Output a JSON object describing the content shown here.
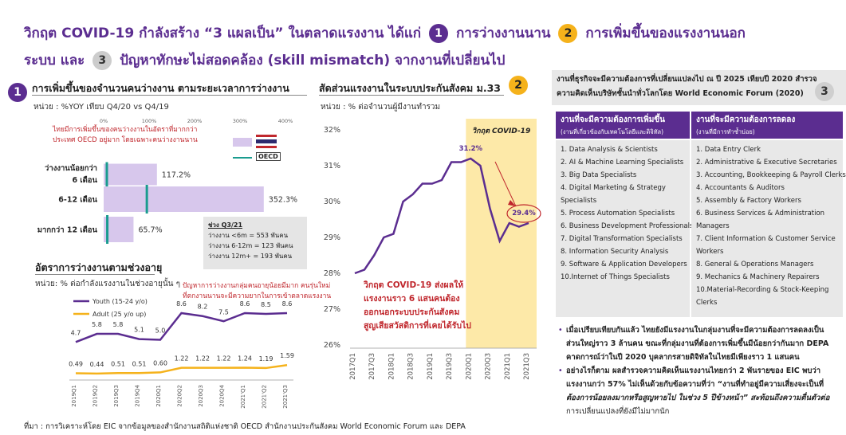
{
  "title": {
    "line1_pre": "วิกฤต COVID-19 กำลังสร้าง “3 แผลเป็น” ในตลาดแรงงาน ได้แก่",
    "n1": "1",
    "item1": "การว่างงานนาน",
    "n2": "2",
    "item2": "การเพิ่มขึ้นของแรงงานนอก",
    "line2_pre": "ระบบ และ",
    "n3": "3",
    "item3": "ปัญหาทักษะไม่สอดคล้อง (skill mismatch) จากงานที่เปลี่ยนไป"
  },
  "panel1": {
    "badge": "1",
    "title": "การเพิ่มขึ้นของจำนวนคนว่างงาน ตามระยะเวลาการว่างงาน",
    "unit": "หน่วย : %YOY เทียบ Q4/20 vs Q4/19",
    "note_line1": "ไทยมีการเพิ่มขึ้นของคนว่างงานในอัตราที่มากกว่า",
    "note_line2": "ประเทศ OECD อยู่มาก โดยเฉพาะคนว่างงานนาน",
    "legend_oecd": "OECD",
    "box_title": "ช่วง Q3/21",
    "box_lines": [
      "ว่างงาน <6m = 553 พันคน",
      "ว่างงาน 6-12m = 123 พันคน",
      "ว่างงาน 12m+ = 193 พันคน"
    ]
  },
  "panel2": {
    "title": "อัตราการว่างงานตามช่วงอายุ",
    "unit": "หน่วย: % ต่อกำลังแรงงานในช่วงอายุนั้น ๆ",
    "note_line1": "ปัญหาการว่างงานกลุ่มคนอายุน้อยมีมาก คนรุ่นใหม่",
    "note_line2": "ที่ตกงานนานจะมีความยากในการเข้าตลาดแรงงาน"
  },
  "panel3": {
    "title": "สัดส่วนแรงงานในระบบประกันสังคม ม.33",
    "badge": "2",
    "unit": "หน่วย : % ต่อจำนวนผู้มีงานทำรวม",
    "crisis_label": "วิกฤต COVID-19",
    "note_lines": [
      "วิกฤต COVID-19 ส่งผลให้",
      "แรงงานราว 6 แสนคนต้อง",
      "ออกนอกระบบประกันสังคม",
      "สูญเสียสวัสดิการที่เคยได้รับไป"
    ]
  },
  "panel4": {
    "title_line1": "งานที่ธุรกิจจะมีความต้องการที่เปลี่ยนแปลงไป ณ ปี 2025 เทียบปี 2020 สำรวจ",
    "title_line2": "ความคิดเห็นบริษัทชั้นนำทั่วโลกโดย World Economic Forum (2020)",
    "badge": "3",
    "col1_head": "งานที่จะมีความต้องการเพิ่มขึ้น",
    "col1_sub": "(งานที่เกี่ยวข้องกับเทคโนโลยีและดิจิทัล)",
    "col2_head": "งานที่จะมีความต้องการลดลง",
    "col2_sub": "(งานที่มีการทำซ้ำบ่อย)",
    "col1_items": [
      "1. Data Analysis & Scientists",
      "2. AI & Machine Learning Specialists",
      "3. Big Data Specialists",
      "4. Digital Marketing & Strategy",
      "    Specialists",
      "5. Process Automation Specialists",
      "6. Business Development Professionals",
      "7. Digital Transformation Specialists",
      "8. Information Security Analysis",
      "9. Software & Application Developers",
      "10.Internet of Things Specialists"
    ],
    "col2_items": [
      "1. Data Entry Clerk",
      "2. Administrative & Executive Secretaries",
      "3. Accounting, Bookkeeping & Payroll Clerks",
      "4. Accountants & Auditors",
      "5. Assembly & Factory Workers",
      "6. Business Services & Administration",
      "    Managers",
      "7. Client Information & Customer Service",
      "    Workers",
      "8. General & Operations Managers",
      "9. Mechanics & Machinery Repairers",
      "10.Material-Recording & Stock-Keeping",
      "    Clerks"
    ],
    "bullet1_lines": [
      "เมื่อเปรียบเทียบกันแล้ว ไทยยังมีแรงงานในกลุ่มงานที่จะมีความต้องการลดลงเป็น",
      "ส่วนใหญ่ราว 3 ล้านคน ขณะที่กลุ่มงานที่ต้องการเพิ่มขึ้นมีน้อยกว่ากันมาก DEPA",
      "คาดการณ์ว่าในปี 2020 บุคลากรสายดิจิทัลในไทยมีเพียงราว 1 แสนคน"
    ],
    "bullet2_lines": [
      "อย่างไรก็ตาม ผลสำรวจความคิดเห็นแรงงานไทยกว่า 2 พันรายของ EIC พบว่า",
      "แรงงานกว่า 57% ไม่เห็นด้วยกับข้อความที่ว่า “งานที่ทำอยู่มีความเสี่ยงจะเป็นที่",
      "ต้องการน้อยลงมากหรือสูญหายไป ในช่วง 5 ปีข้างหน้า” สะท้อนถึงความตื่นตัวต่อ",
      "การเปลี่ยนแปลงที่ยังมีไม่มากนัก"
    ]
  },
  "source": "ที่มา : การวิเคราะห์โดย EIC จากข้อมูลของสำนักงานสถิติแห่งชาติ OECD สำนักงานประกันสังคม World Economic Forum และ DEPA",
  "colors": {
    "purple": "#5b2d90",
    "orange": "#f5b21b",
    "lavender": "#d7c7ec",
    "teal": "#1a9c8f",
    "red": "#c0272d",
    "crisis": "#fde9a8"
  },
  "chart_data": [
    {
      "type": "bar",
      "orientation": "horizontal",
      "categories": [
        "ว่างงานน้อยกว่า 6 เดือน",
        "6-12 เดือน",
        "มากกว่า 12 เดือน"
      ],
      "category_lines": [
        [
          "ว่างงานน้อยกว่า",
          "6 เดือน"
        ],
        [
          "6-12 เดือน"
        ],
        [
          "มากกว่า 12 เดือน"
        ]
      ],
      "series": [
        {
          "name": "Thailand",
          "values": [
            117.2,
            352.3,
            65.7
          ],
          "labels": [
            "117.2%",
            "352.3%",
            "65.7%"
          ]
        },
        {
          "name": "OECD",
          "values": [
            7,
            95,
            8
          ]
        }
      ],
      "xticks": [
        "0%",
        "100%",
        "200%",
        "300%",
        "400%"
      ],
      "xlim": [
        0,
        400
      ]
    },
    {
      "type": "line",
      "categories": [
        "2019Q1",
        "2019Q2",
        "2019Q3",
        "2019Q4",
        "2020Q1",
        "2020Q2",
        "2020Q3",
        "2020Q4",
        "2021Q1",
        "2021Q2",
        "2021Q3"
      ],
      "tick_labels": [
        "2019Q1",
        "2019Q2",
        "2019Q3",
        "2019Q4",
        "2020Q1",
        "2020Q2",
        "2020Q3",
        "2020Q4",
        "2021'Q1",
        "2021'Q2",
        "2021'Q3"
      ],
      "series": [
        {
          "name": "Youth (15-24 y/o)",
          "values": [
            4.7,
            5.8,
            5.8,
            5.1,
            5.0,
            8.6,
            8.2,
            7.5,
            8.6,
            8.5,
            8.6
          ],
          "labels": [
            "4.7",
            "5.8",
            "5.8",
            "5.1",
            "5.0",
            "8.6",
            "8.2",
            "7.5",
            "8.6",
            "8.5",
            "8.6"
          ]
        },
        {
          "name": "Adult (25 y/o up)",
          "values": [
            0.49,
            0.44,
            0.51,
            0.51,
            0.6,
            1.22,
            1.22,
            1.22,
            1.24,
            1.19,
            1.59
          ],
          "labels": [
            "0.49",
            "0.44",
            "0.51",
            "0.51",
            "0.60",
            "1.22",
            "1.22",
            "1.22",
            "1.24",
            "1.19",
            "1.59"
          ]
        }
      ],
      "ylim": [
        0,
        10
      ]
    },
    {
      "type": "line",
      "categories": [
        "2017Q1",
        "2017Q2",
        "2017Q3",
        "2017Q4",
        "2018Q1",
        "2018Q2",
        "2018Q3",
        "2018Q4",
        "2019Q1",
        "2019Q2",
        "2019Q3",
        "2019Q4",
        "2020Q1",
        "2020Q2",
        "2020Q3",
        "2020Q4",
        "2021Q1",
        "2021Q2",
        "2021Q3"
      ],
      "tick_labels": [
        "2017Q1",
        "2017Q3",
        "2018Q1",
        "2018Q3",
        "2019Q1",
        "2019Q3",
        "2020Q1",
        "2020Q3",
        "2021Q1",
        "2021Q3"
      ],
      "tick_categories": [
        "2017Q1",
        "2017Q3",
        "2018Q1",
        "2018Q3",
        "2019Q1",
        "2019Q3",
        "2020Q1",
        "2020Q3",
        "2021Q1",
        "2021Q3"
      ],
      "series": [
        {
          "values": [
            28.0,
            28.1,
            28.5,
            29.0,
            29.1,
            30.0,
            30.2,
            30.5,
            30.5,
            30.6,
            31.1,
            31.1,
            31.2,
            31.0,
            29.8,
            28.9,
            29.4,
            29.3,
            29.4
          ]
        }
      ],
      "point_labels": {
        "12": "31.2%",
        "18": "29.4%"
      },
      "crisis_start": "2020Q1",
      "yticks": [
        "26%",
        "27%",
        "28%",
        "29%",
        "30%",
        "31%",
        "32%"
      ],
      "ylim": [
        26,
        32
      ]
    }
  ]
}
